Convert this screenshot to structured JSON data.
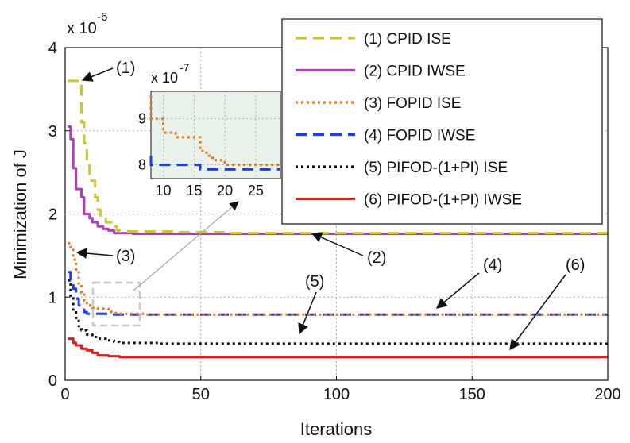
{
  "chart_data": {
    "type": "line",
    "title": "",
    "xlabel": "Iterations",
    "ylabel": "Minimization of J",
    "y_multiplier": "x 10",
    "y_multiplier_exp": "-6",
    "xlim": [
      0,
      200
    ],
    "ylim": [
      0,
      4
    ],
    "xticks": [
      "0",
      "50",
      "100",
      "150",
      "200"
    ],
    "yticks": [
      "0",
      "1",
      "2",
      "3",
      "4"
    ],
    "grid": true,
    "legend_position": "top-right",
    "series": [
      {
        "name": "(1) CPID ISE",
        "color": "#c8c832",
        "style": "dashed",
        "x": [
          1,
          5,
          6,
          7,
          8,
          9,
          10,
          11,
          12,
          13,
          14,
          15,
          16,
          17,
          18,
          19,
          20,
          30,
          40,
          50,
          60,
          200
        ],
        "y": [
          3.6,
          3.6,
          3.1,
          2.85,
          2.6,
          2.4,
          2.4,
          2.2,
          2.05,
          1.95,
          1.95,
          1.9,
          1.9,
          1.85,
          1.85,
          1.8,
          1.79,
          1.79,
          1.78,
          1.78,
          1.77,
          1.77
        ]
      },
      {
        "name": "(2) CPID IWSE",
        "color": "#b03cbf",
        "style": "solid",
        "x": [
          1,
          2,
          3,
          4,
          5,
          6,
          7,
          8,
          9,
          10,
          12,
          14,
          16,
          18,
          25,
          200
        ],
        "y": [
          3.05,
          2.9,
          2.55,
          2.3,
          2.3,
          2.2,
          2.0,
          2.0,
          1.95,
          1.9,
          1.85,
          1.82,
          1.8,
          1.77,
          1.76,
          1.76
        ]
      },
      {
        "name": "(3) FOPID ISE",
        "color": "#e07a1f",
        "style": "dotted",
        "x": [
          1,
          2,
          3,
          4,
          5,
          6,
          7,
          8,
          10,
          12,
          15,
          16,
          17,
          18,
          20,
          25,
          30,
          200
        ],
        "y": [
          1.65,
          1.6,
          1.45,
          1.3,
          1.15,
          1.05,
          0.95,
          0.9,
          0.87,
          0.86,
          0.86,
          0.83,
          0.82,
          0.81,
          0.8,
          0.8,
          0.79,
          0.79
        ]
      },
      {
        "name": "(4) FOPID IWSE",
        "color": "#1f3fe0",
        "style": "dashed",
        "x": [
          1,
          2,
          3,
          4,
          5,
          6,
          7,
          8,
          10,
          15,
          16,
          20,
          200
        ],
        "y": [
          1.3,
          1.2,
          1.1,
          0.98,
          0.9,
          0.85,
          0.82,
          0.8,
          0.8,
          0.8,
          0.79,
          0.79,
          0.79
        ]
      },
      {
        "name": "(5) PIFOD-(1+PI) ISE",
        "color": "#111111",
        "style": "dotted",
        "x": [
          1,
          2,
          3,
          4,
          5,
          6,
          8,
          10,
          12,
          15,
          18,
          20,
          35,
          200
        ],
        "y": [
          1.2,
          1.0,
          0.85,
          0.75,
          0.65,
          0.6,
          0.55,
          0.52,
          0.5,
          0.48,
          0.46,
          0.45,
          0.44,
          0.44
        ]
      },
      {
        "name": "(6) PIFOD-(1+PI) IWSE",
        "color": "#e01e1e",
        "style": "solid",
        "x": [
          1,
          3,
          4,
          6,
          8,
          10,
          12,
          14,
          16,
          18,
          20,
          200
        ],
        "y": [
          0.5,
          0.45,
          0.42,
          0.38,
          0.36,
          0.33,
          0.3,
          0.3,
          0.29,
          0.29,
          0.28,
          0.28
        ]
      }
    ],
    "inset": {
      "y_multiplier": "x 10",
      "y_multiplier_exp": "-7",
      "xlim": [
        8,
        29
      ],
      "ylim": [
        7.7,
        9.6
      ],
      "xticks": [
        "10",
        "15",
        "20",
        "25"
      ],
      "yticks": [
        "8",
        "9"
      ]
    },
    "annotations": [
      {
        "text": "(1)"
      },
      {
        "text": "(2)"
      },
      {
        "text": "(3)"
      },
      {
        "text": "(4)"
      },
      {
        "text": "(5)"
      },
      {
        "text": "(6)"
      }
    ]
  }
}
